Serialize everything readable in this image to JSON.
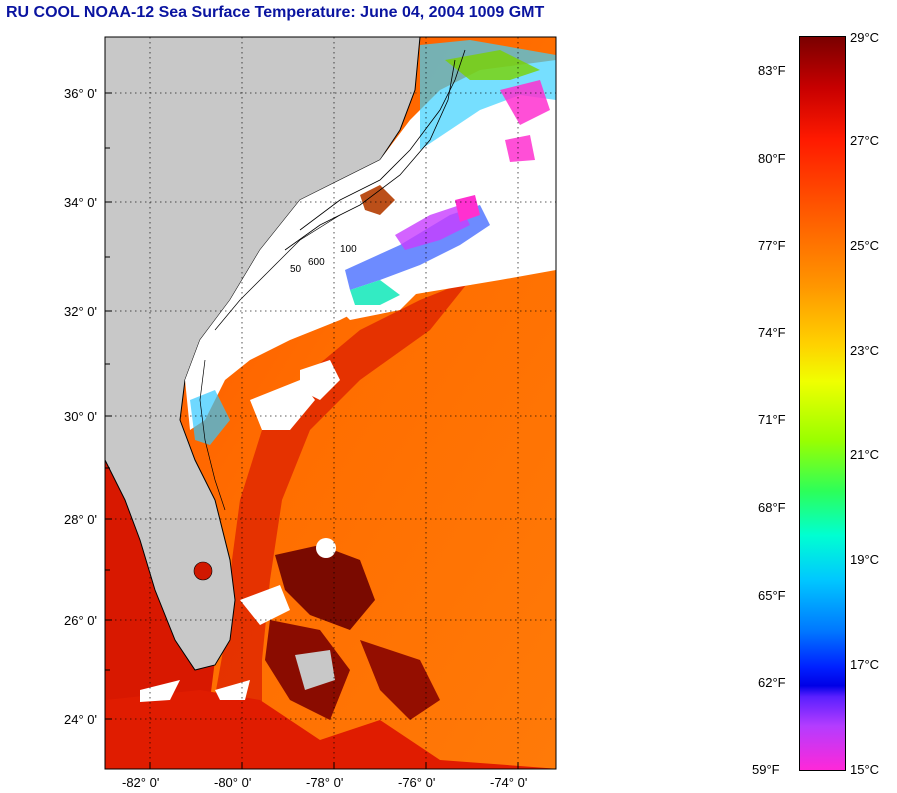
{
  "title": "RU COOL  NOAA-12  Sea Surface Temperature:  June 04, 2004 1009 GMT",
  "map": {
    "lat_labels": [
      "36° 0'",
      "34° 0'",
      "32° 0'",
      "30° 0'",
      "28° 0'",
      "26° 0'",
      "24° 0'"
    ],
    "lon_labels": [
      "-82° 0'",
      "-80° 0'",
      "-78° 0'",
      "-76° 0'",
      "-74° 0'"
    ],
    "contour_labels": [
      "600",
      "100",
      "50"
    ],
    "colors": {
      "land": "#c8c8c8",
      "cloud": "#ffffff",
      "sst_warm": "#ff6a00",
      "sst_hot": "#d01000"
    }
  },
  "colorbar": {
    "celsius": [
      "29°C",
      "27°C",
      "25°C",
      "23°C",
      "21°C",
      "19°C",
      "17°C",
      "15°C"
    ],
    "fahrenheit": [
      "83°F",
      "80°F",
      "77°F",
      "74°F",
      "71°F",
      "68°F",
      "65°F",
      "62°F",
      "59°F"
    ]
  }
}
